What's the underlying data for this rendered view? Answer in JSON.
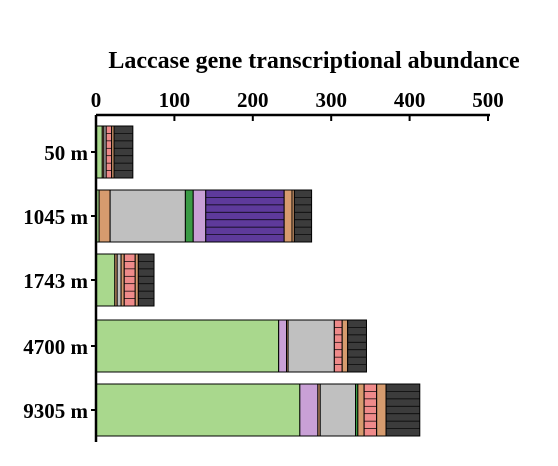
{
  "chart_data": {
    "type": "bar",
    "orientation": "horizontal",
    "stacked": true,
    "title": "Laccase gene transcriptional abundance",
    "xlabel": "",
    "ylabel": "",
    "xlim": [
      0,
      500
    ],
    "xticks": [
      0,
      100,
      200,
      300,
      400,
      500
    ],
    "x_axis_position": "top",
    "grid": false,
    "legend": "none",
    "categories": [
      "50 m",
      "1045 m",
      "1743 m",
      "4700 m",
      "9305 m"
    ],
    "series": [
      {
        "color": "#a9d88d",
        "values": [
          8,
          4,
          24,
          233,
          260
        ]
      },
      {
        "color": "#c9a0d6",
        "values": [
          0,
          0,
          0,
          10,
          23
        ]
      },
      {
        "color": "#d69b6e",
        "values": [
          2,
          14,
          3,
          2,
          3
        ]
      },
      {
        "color": "#c0c0c0",
        "values": [
          3,
          96,
          5,
          59,
          45
        ]
      },
      {
        "color": "#3a9a45",
        "values": [
          0,
          10,
          0,
          0,
          3
        ]
      },
      {
        "color": "#c9a0d6",
        "values": [
          0,
          16,
          0,
          0,
          0
        ]
      },
      {
        "color": "#5e3a9b",
        "values": [
          0,
          100,
          0,
          0,
          0
        ]
      },
      {
        "color": "#d69b6e",
        "values": [
          0,
          10,
          4,
          0,
          8
        ]
      },
      {
        "color": "#ef8a8a",
        "values": [
          7,
          0,
          14,
          10,
          16
        ]
      },
      {
        "color": "#d69b6e",
        "values": [
          3,
          3,
          4,
          7,
          12
        ]
      },
      {
        "color": "#3c3c3c",
        "values": [
          24,
          22,
          20,
          24,
          43
        ]
      }
    ]
  }
}
